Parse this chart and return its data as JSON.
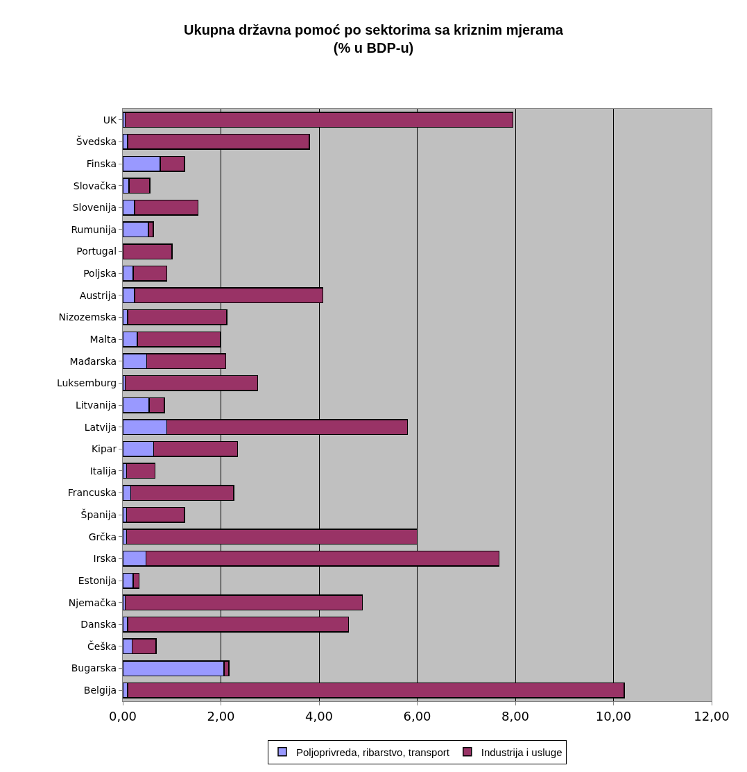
{
  "chart_data": {
    "type": "bar",
    "orientation": "horizontal",
    "stacked": true,
    "title": "Ukupna državna pomoć po sektorima sa kriznim mjerama\n(% u BDP-u)",
    "categories": [
      "UK",
      "Švedska",
      "Finska",
      "Slovačka",
      "Slovenija",
      "Rumunija",
      "Portugal",
      "Poljska",
      "Austrija",
      "Nizozemska",
      "Malta",
      "Mađarska",
      "Luksemburg",
      "Litvanija",
      "Latvija",
      "Kipar",
      "Italija",
      "Francuska",
      "Španija",
      "Grčka",
      "Irska",
      "Estonija",
      "Njemačka",
      "Danska",
      "Češka",
      "Bugarska",
      "Belgija"
    ],
    "series": [
      {
        "name": "Poljoprivreda, ribarstvo, transport",
        "color": "#9999ff",
        "values": [
          0.05,
          0.1,
          0.76,
          0.13,
          0.24,
          0.52,
          null,
          0.21,
          0.24,
          0.1,
          0.3,
          0.49,
          0.05,
          0.54,
          0.9,
          0.63,
          0.08,
          0.16,
          0.08,
          0.08,
          0.47,
          0.21,
          0.05,
          0.1,
          0.19,
          2.06,
          0.1
        ]
      },
      {
        "name": "Industrija i usluge",
        "color": "#993366",
        "values": [
          7.9,
          3.7,
          0.5,
          0.42,
          1.29,
          0.1,
          1.0,
          0.69,
          3.84,
          2.02,
          1.69,
          1.61,
          2.7,
          0.31,
          4.9,
          1.71,
          0.58,
          2.1,
          1.18,
          5.92,
          7.2,
          0.12,
          4.83,
          4.5,
          0.49,
          0.1,
          10.12
        ]
      }
    ],
    "xlim": [
      0,
      12
    ],
    "xticks": [
      {
        "value": 0,
        "label": "0,00"
      },
      {
        "value": 2,
        "label": "2,00"
      },
      {
        "value": 4,
        "label": "4,00"
      },
      {
        "value": 6,
        "label": "6,00"
      },
      {
        "value": 8,
        "label": "8,00"
      },
      {
        "value": 10,
        "label": "10,00"
      },
      {
        "value": 12,
        "label": "12,00"
      }
    ],
    "grid": "x",
    "legend": "bottom"
  }
}
